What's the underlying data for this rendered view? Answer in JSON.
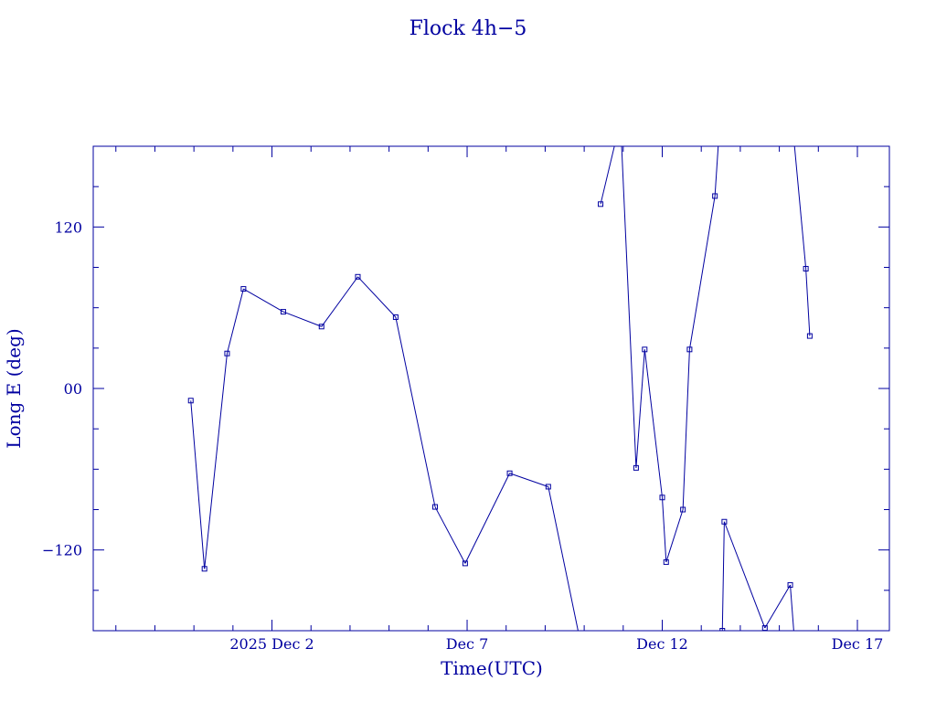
{
  "colors": {
    "ink": "#0000a0",
    "background": "#ffffff"
  },
  "chart_data": {
    "type": "line",
    "title": "Flock 4h−5",
    "xlabel": "Time(UTC)",
    "ylabel": "Long E (deg)",
    "x_ticks": [
      {
        "day": 2,
        "label": "2025 Dec  2"
      },
      {
        "day": 7,
        "label": "Dec  7"
      },
      {
        "day": 12,
        "label": "Dec 12"
      },
      {
        "day": 17,
        "label": "Dec 17"
      }
    ],
    "y_ticks": [
      {
        "value": 120,
        "label": "120"
      },
      {
        "value": 0,
        "label": "00"
      },
      {
        "value": -120,
        "label": "−120"
      }
    ],
    "xlim": [
      -2.58,
      17.82
    ],
    "ylim": [
      -180,
      180
    ],
    "y_wraps": true,
    "grid": false,
    "series": [
      {
        "points": [
          [
            -0.08,
            -9
          ],
          [
            0.27,
            -134
          ],
          [
            0.85,
            26
          ],
          [
            1.27,
            74
          ],
          [
            2.29,
            57
          ],
          [
            3.27,
            46
          ],
          [
            4.2,
            83
          ],
          [
            5.17,
            53
          ],
          [
            6.18,
            -88
          ],
          [
            6.95,
            -130
          ],
          [
            8.09,
            -63
          ],
          [
            9.08,
            -73
          ],
          [
            9.95,
            -195
          ],
          [
            10.42,
            137
          ],
          [
            10.93,
            199
          ],
          [
            11.33,
            -59
          ],
          [
            11.55,
            29
          ],
          [
            12.0,
            -81
          ],
          [
            12.1,
            -129
          ],
          [
            12.53,
            -90
          ],
          [
            12.7,
            29
          ],
          [
            13.35,
            143
          ],
          [
            13.45,
            187
          ],
          [
            13.54,
            -180
          ],
          [
            13.59,
            -99
          ],
          [
            14.63,
            -178
          ],
          [
            15.28,
            -146
          ],
          [
            15.38,
            -184
          ],
          [
            15.38,
            183
          ],
          [
            15.68,
            89
          ],
          [
            15.78,
            39
          ]
        ]
      }
    ]
  }
}
